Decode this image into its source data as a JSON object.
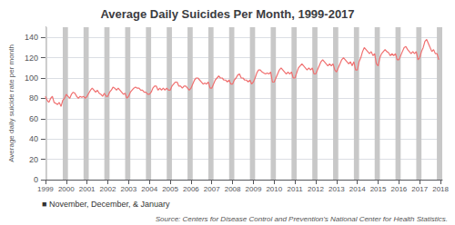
{
  "chart_data": {
    "type": "line",
    "title": "Average Daily Suicides Per Month, 1999-2017",
    "ylabel": "Average daily suicide rate per month",
    "annotations": [
      "■ November, December, & January",
      "Source: Centers for Disease Control and Prevention's National Center for Health Statistics."
    ],
    "xlim": [
      1999,
      2018.0833333333333
    ],
    "xticks": [
      1999,
      2000,
      2001,
      2002,
      2003,
      2004,
      2005,
      2006,
      2007,
      2008,
      2009,
      2010,
      2011,
      2012,
      2013,
      2014,
      2015,
      2016,
      2017,
      2018
    ],
    "ylim": [
      0,
      150
    ],
    "yticks": [
      0,
      20,
      40,
      60,
      80,
      100,
      120,
      140
    ],
    "grid": true,
    "x": [
      1999,
      1999.0833333333333,
      1999.1666666666667,
      1999.25,
      1999.3333333333333,
      1999.4166666666667,
      1999.5,
      1999.5833333333333,
      1999.6666666666667,
      1999.75,
      1999.8333333333333,
      1999.9166666666667,
      2000,
      2000.0833333333333,
      2000.1666666666667,
      2000.25,
      2000.3333333333333,
      2000.4166666666667,
      2000.5,
      2000.5833333333333,
      2000.6666666666667,
      2000.75,
      2000.8333333333333,
      2000.9166666666667,
      2001,
      2001.0833333333333,
      2001.1666666666667,
      2001.25,
      2001.3333333333333,
      2001.4166666666667,
      2001.5,
      2001.5833333333333,
      2001.6666666666667,
      2001.75,
      2001.8333333333333,
      2001.9166666666667,
      2002,
      2002.0833333333333,
      2002.1666666666667,
      2002.25,
      2002.3333333333333,
      2002.4166666666667,
      2002.5,
      2002.5833333333333,
      2002.6666666666667,
      2002.75,
      2002.8333333333333,
      2002.9166666666667,
      2003,
      2003.0833333333333,
      2003.1666666666667,
      2003.25,
      2003.3333333333333,
      2003.4166666666667,
      2003.5,
      2003.5833333333333,
      2003.6666666666667,
      2003.75,
      2003.8333333333333,
      2003.9166666666667,
      2004,
      2004.0833333333333,
      2004.1666666666667,
      2004.25,
      2004.3333333333333,
      2004.4166666666667,
      2004.5,
      2004.5833333333333,
      2004.6666666666667,
      2004.75,
      2004.8333333333333,
      2004.9166666666667,
      2005,
      2005.0833333333333,
      2005.1666666666667,
      2005.25,
      2005.3333333333333,
      2005.4166666666667,
      2005.5,
      2005.5833333333333,
      2005.6666666666667,
      2005.75,
      2005.8333333333333,
      2005.9166666666667,
      2006,
      2006.0833333333333,
      2006.1666666666667,
      2006.25,
      2006.3333333333333,
      2006.4166666666667,
      2006.5,
      2006.5833333333333,
      2006.6666666666667,
      2006.75,
      2006.8333333333333,
      2006.9166666666667,
      2007,
      2007.0833333333333,
      2007.1666666666667,
      2007.25,
      2007.3333333333333,
      2007.4166666666667,
      2007.5,
      2007.5833333333333,
      2007.6666666666667,
      2007.75,
      2007.8333333333333,
      2007.9166666666667,
      2008,
      2008.0833333333333,
      2008.1666666666667,
      2008.25,
      2008.3333333333333,
      2008.4166666666667,
      2008.5,
      2008.5833333333333,
      2008.6666666666667,
      2008.75,
      2008.8333333333333,
      2008.9166666666667,
      2009,
      2009.0833333333333,
      2009.1666666666667,
      2009.25,
      2009.3333333333333,
      2009.4166666666667,
      2009.5,
      2009.5833333333333,
      2009.6666666666667,
      2009.75,
      2009.8333333333333,
      2009.9166666666667,
      2010,
      2010.0833333333333,
      2010.1666666666667,
      2010.25,
      2010.3333333333333,
      2010.4166666666667,
      2010.5,
      2010.5833333333333,
      2010.6666666666667,
      2010.75,
      2010.8333333333333,
      2010.9166666666667,
      2011,
      2011.0833333333333,
      2011.1666666666667,
      2011.25,
      2011.3333333333333,
      2011.4166666666667,
      2011.5,
      2011.5833333333333,
      2011.6666666666667,
      2011.75,
      2011.8333333333333,
      2011.9166666666667,
      2012,
      2012.0833333333333,
      2012.1666666666667,
      2012.25,
      2012.3333333333333,
      2012.4166666666667,
      2012.5,
      2012.5833333333333,
      2012.6666666666667,
      2012.75,
      2012.8333333333333,
      2012.9166666666667,
      2013,
      2013.0833333333333,
      2013.1666666666667,
      2013.25,
      2013.3333333333333,
      2013.4166666666667,
      2013.5,
      2013.5833333333333,
      2013.6666666666667,
      2013.75,
      2013.8333333333333,
      2013.9166666666667,
      2014,
      2014.0833333333333,
      2014.1666666666667,
      2014.25,
      2014.3333333333333,
      2014.4166666666667,
      2014.5,
      2014.5833333333333,
      2014.6666666666667,
      2014.75,
      2014.8333333333333,
      2014.9166666666667,
      2015,
      2015.0833333333333,
      2015.1666666666667,
      2015.25,
      2015.3333333333333,
      2015.4166666666667,
      2015.5,
      2015.5833333333333,
      2015.6666666666667,
      2015.75,
      2015.8333333333333,
      2015.9166666666667,
      2016,
      2016.0833333333333,
      2016.1666666666667,
      2016.25,
      2016.3333333333333,
      2016.4166666666667,
      2016.5,
      2016.5833333333333,
      2016.6666666666667,
      2016.75,
      2016.8333333333333,
      2016.9166666666667,
      2017,
      2017.0833333333333,
      2017.1666666666667,
      2017.25,
      2017.3333333333333,
      2017.4166666666667,
      2017.5,
      2017.5833333333333,
      2017.6666666666667,
      2017.75,
      2017.8333333333333,
      2017.9166666666667
    ],
    "series": [
      {
        "type": "span",
        "color": "#c8c8c8",
        "ranges": [
          [
            1999,
            1999.0833333333333
          ],
          [
            1999.8333333333333,
            2000.0833333333333
          ],
          [
            2000.8333333333333,
            2001.0833333333333
          ],
          [
            2001.8333333333333,
            2002.0833333333333
          ],
          [
            2002.8333333333333,
            2003.0833333333333
          ],
          [
            2003.8333333333333,
            2004.0833333333333
          ],
          [
            2004.8333333333333,
            2005.0833333333333
          ],
          [
            2005.8333333333333,
            2006.0833333333333
          ],
          [
            2006.8333333333333,
            2007.0833333333333
          ],
          [
            2007.8333333333333,
            2008.0833333333333
          ],
          [
            2008.8333333333333,
            2009.0833333333333
          ],
          [
            2009.8333333333333,
            2010.0833333333333
          ],
          [
            2010.8333333333333,
            2011.0833333333333
          ],
          [
            2011.8333333333333,
            2012.0833333333333
          ],
          [
            2012.8333333333333,
            2013.0833333333333
          ],
          [
            2013.8333333333333,
            2014.0833333333333
          ],
          [
            2014.8333333333333,
            2015.0833333333333
          ],
          [
            2015.8333333333333,
            2016.0833333333333
          ],
          [
            2016.8333333333333,
            2017.0833333333333
          ],
          [
            2017.8333333333333,
            2018.0833333333333
          ],
          [
            2017.8333333333333,
            2018
          ]
        ]
      },
      {
        "type": "line",
        "color": "#f07070",
        "values": [
          82,
          78,
          76,
          80,
          82,
          76,
          75,
          74,
          76,
          72,
          78,
          80,
          84,
          82,
          80,
          84,
          86,
          85,
          82,
          80,
          82,
          81,
          82,
          80,
          82,
          85,
          88,
          90,
          88,
          86,
          88,
          85,
          84,
          82,
          85,
          82,
          82,
          86,
          88,
          91,
          90,
          88,
          90,
          88,
          86,
          84,
          85,
          80,
          82,
          86,
          88,
          90,
          91,
          90,
          90,
          88,
          88,
          86,
          86,
          84,
          84,
          86,
          90,
          92,
          92,
          88,
          90,
          88,
          90,
          88,
          90,
          88,
          88,
          92,
          94,
          96,
          96,
          92,
          92,
          90,
          92,
          92,
          90,
          88,
          90,
          94,
          98,
          100,
          100,
          98,
          96,
          94,
          95,
          94,
          96,
          90,
          90,
          94,
          98,
          100,
          102,
          100,
          100,
          98,
          98,
          96,
          98,
          94,
          94,
          98,
          100,
          103,
          104,
          100,
          100,
          98,
          98,
          96,
          98,
          94,
          96,
          100,
          105,
          108,
          108,
          106,
          105,
          104,
          105,
          104,
          106,
          96,
          96,
          100,
          104,
          108,
          110,
          108,
          106,
          104,
          106,
          104,
          106,
          100,
          100,
          105,
          110,
          112,
          114,
          112,
          110,
          108,
          110,
          108,
          110,
          104,
          104,
          108,
          112,
          116,
          118,
          116,
          114,
          112,
          114,
          112,
          114,
          108,
          106,
          110,
          114,
          118,
          120,
          118,
          116,
          114,
          116,
          112,
          116,
          108,
          108,
          116,
          120,
          126,
          130,
          128,
          126,
          124,
          126,
          122,
          124,
          114,
          112,
          120,
          124,
          126,
          128,
          126,
          125,
          122,
          124,
          122,
          124,
          118,
          118,
          122,
          126,
          130,
          131,
          128,
          126,
          124,
          126,
          124,
          126,
          118,
          120,
          126,
          130,
          136,
          138,
          134,
          130,
          126,
          128,
          124,
          124,
          118
        ]
      }
    ]
  }
}
